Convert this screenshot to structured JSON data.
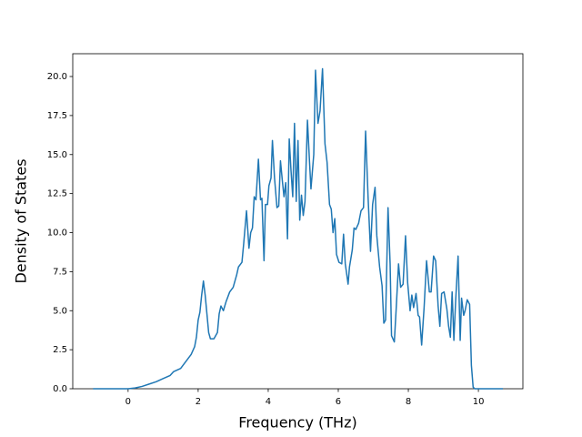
{
  "chart_data": {
    "type": "line",
    "x_label": "Frequency (THz)",
    "y_label": "Density of States",
    "x": [
      -1,
      -0.5,
      0,
      0.2,
      0.4,
      0.6,
      0.8,
      1.0,
      1.2,
      1.3,
      1.5,
      1.6,
      1.7,
      1.8,
      1.9,
      1.95,
      2.0,
      2.05,
      2.1,
      2.15,
      2.2,
      2.25,
      2.3,
      2.35,
      2.45,
      2.55,
      2.6,
      2.65,
      2.72,
      2.8,
      2.9,
      3.0,
      3.1,
      3.15,
      3.25,
      3.3,
      3.38,
      3.45,
      3.5,
      3.55,
      3.6,
      3.65,
      3.72,
      3.78,
      3.82,
      3.88,
      3.92,
      3.98,
      4.02,
      4.08,
      4.12,
      4.18,
      4.25,
      4.3,
      4.35,
      4.4,
      4.45,
      4.5,
      4.55,
      4.6,
      4.65,
      4.7,
      4.75,
      4.8,
      4.85,
      4.9,
      4.95,
      5.0,
      5.05,
      5.12,
      5.18,
      5.22,
      5.3,
      5.35,
      5.42,
      5.48,
      5.55,
      5.62,
      5.68,
      5.75,
      5.8,
      5.85,
      5.9,
      5.95,
      6.02,
      6.1,
      6.15,
      6.2,
      6.28,
      6.32,
      6.4,
      6.45,
      6.5,
      6.58,
      6.65,
      6.72,
      6.78,
      6.85,
      6.92,
      6.98,
      7.05,
      7.1,
      7.18,
      7.25,
      7.3,
      7.35,
      7.42,
      7.48,
      7.52,
      7.6,
      7.65,
      7.72,
      7.78,
      7.85,
      7.92,
      7.98,
      8.05,
      8.1,
      8.15,
      8.22,
      8.28,
      8.32,
      8.38,
      8.45,
      8.52,
      8.6,
      8.65,
      8.72,
      8.78,
      8.85,
      8.9,
      8.95,
      9.02,
      9.1,
      9.15,
      9.2,
      9.25,
      9.3,
      9.35,
      9.42,
      9.48,
      9.52,
      9.58,
      9.62,
      9.68,
      9.75,
      9.8,
      9.85,
      9.9,
      10.7
    ],
    "series": [
      {
        "color": "#1f77b4",
        "values": [
          0,
          0,
          0,
          0.05,
          0.15,
          0.3,
          0.45,
          0.65,
          0.85,
          1.1,
          1.3,
          1.6,
          1.9,
          2.2,
          2.7,
          3.3,
          4.4,
          4.9,
          6.0,
          6.9,
          6.0,
          4.8,
          3.6,
          3.2,
          3.2,
          3.6,
          4.8,
          5.3,
          5.0,
          5.6,
          6.2,
          6.5,
          7.3,
          7.8,
          8.1,
          9.3,
          11.4,
          9.0,
          10.0,
          10.3,
          12.3,
          12.1,
          14.7,
          12.1,
          12.2,
          8.2,
          11.8,
          11.8,
          13.0,
          13.5,
          15.9,
          13.5,
          11.6,
          11.7,
          14.6,
          13.4,
          12.3,
          13.2,
          9.6,
          16.0,
          14.0,
          12.3,
          17.0,
          12.0,
          15.9,
          10.8,
          12.4,
          11.1,
          12.0,
          17.2,
          14.5,
          12.8,
          15.0,
          20.4,
          17.0,
          17.8,
          20.5,
          15.7,
          14.5,
          11.8,
          11.5,
          10.0,
          10.9,
          8.6,
          8.1,
          8.0,
          9.9,
          8.0,
          6.7,
          7.8,
          8.9,
          10.3,
          10.2,
          10.6,
          11.4,
          11.6,
          16.5,
          12.3,
          8.8,
          11.8,
          12.9,
          9.8,
          7.8,
          6.6,
          4.2,
          4.4,
          11.6,
          8.0,
          3.4,
          3.0,
          5.0,
          8.0,
          6.5,
          6.7,
          9.8,
          6.8,
          5.0,
          6.0,
          5.2,
          6.1,
          4.7,
          4.6,
          2.8,
          5.2,
          8.2,
          6.2,
          6.2,
          8.5,
          8.2,
          5.3,
          4.0,
          6.1,
          6.2,
          5.1,
          4.0,
          3.3,
          6.2,
          3.1,
          5.6,
          8.5,
          3.1,
          5.8,
          4.7,
          5.0,
          5.7,
          5.4,
          1.5,
          0.1,
          0,
          0
        ]
      }
    ],
    "xlim": [
      -1.58,
      11.27
    ],
    "xticks": [
      0,
      2,
      4,
      6,
      8,
      10
    ],
    "ylim": [
      0,
      21.46
    ],
    "yticks": [
      {
        "value": 0,
        "label": "0.0"
      },
      2.5,
      {
        "value": 5,
        "label": "5.0"
      },
      7.5,
      {
        "value": 10,
        "label": "10.0"
      },
      12.5,
      {
        "value": 15,
        "label": "15.0"
      },
      17.5,
      {
        "value": 20,
        "label": "20.0"
      }
    ]
  }
}
